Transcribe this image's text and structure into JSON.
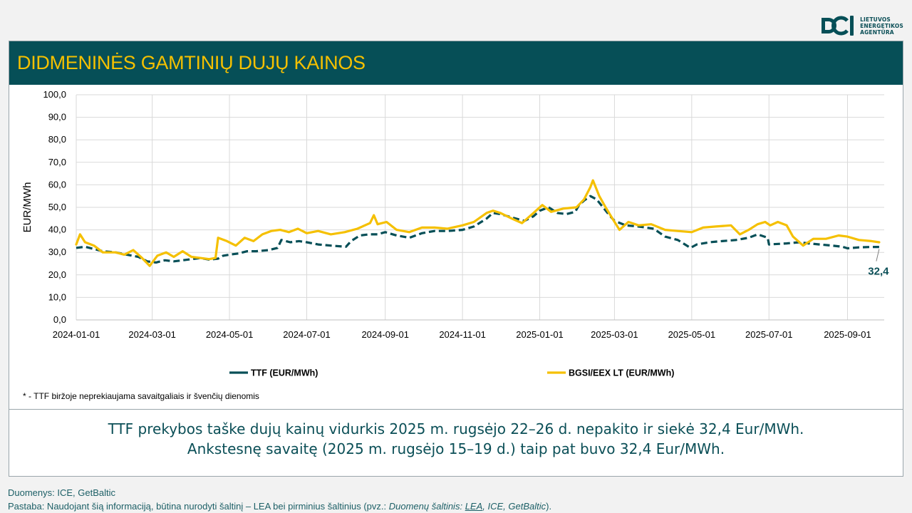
{
  "logo": {
    "name": "lea-logo-icon",
    "lines": [
      "LIETUVOS",
      "ENERGETIKOS",
      "AGENTŪRA"
    ]
  },
  "header": {
    "title": "DIDMENINĖS GAMTINIŲ DUJŲ KAINOS"
  },
  "chart_data": {
    "type": "line",
    "ylabel": "EUR/MWh",
    "ylim": [
      0,
      100
    ],
    "yticks": [
      "0,0",
      "10,0",
      "20,0",
      "30,0",
      "40,0",
      "50,0",
      "60,0",
      "70,0",
      "80,0",
      "90,0",
      "100,0"
    ],
    "xlim": [
      "2024-01-01",
      "2025-09-30"
    ],
    "xticks": [
      "2024-01-01",
      "2024-03-01",
      "2024-05-01",
      "2024-07-01",
      "2024-09-01",
      "2024-11-01",
      "2025-01-01",
      "2025-03-01",
      "2025-05-01",
      "2025-07-01",
      "2025-09-01"
    ],
    "grid": "vertical-and-horizontal",
    "legend_position": "bottom",
    "last_value_label": "32,4",
    "series": [
      {
        "name": "TTF (EUR/MWh)",
        "color": "#064f57",
        "style": "dashed",
        "points": [
          [
            "2024-01-01",
            32.0
          ],
          [
            "2024-01-08",
            32.5
          ],
          [
            "2024-01-15",
            31.5
          ],
          [
            "2024-01-22",
            30.5
          ],
          [
            "2024-02-01",
            30.0
          ],
          [
            "2024-02-10",
            29.0
          ],
          [
            "2024-02-19",
            28.0
          ],
          [
            "2024-02-26",
            26.0
          ],
          [
            "2024-03-04",
            25.5
          ],
          [
            "2024-03-11",
            26.5
          ],
          [
            "2024-03-18",
            26.0
          ],
          [
            "2024-03-25",
            26.5
          ],
          [
            "2024-04-01",
            27.0
          ],
          [
            "2024-04-08",
            27.5
          ],
          [
            "2024-04-15",
            26.8
          ],
          [
            "2024-04-22",
            27.2
          ],
          [
            "2024-04-26",
            28.5
          ],
          [
            "2024-05-01",
            29.0
          ],
          [
            "2024-05-08",
            29.5
          ],
          [
            "2024-05-15",
            30.5
          ],
          [
            "2024-05-22",
            30.5
          ],
          [
            "2024-06-01",
            31.0
          ],
          [
            "2024-06-08",
            32.0
          ],
          [
            "2024-06-11",
            35.5
          ],
          [
            "2024-06-18",
            34.5
          ],
          [
            "2024-06-25",
            35.0
          ],
          [
            "2024-07-01",
            34.5
          ],
          [
            "2024-07-10",
            33.5
          ],
          [
            "2024-07-20",
            33.0
          ],
          [
            "2024-08-01",
            32.5
          ],
          [
            "2024-08-05",
            35.0
          ],
          [
            "2024-08-12",
            37.5
          ],
          [
            "2024-08-19",
            38.0
          ],
          [
            "2024-08-26",
            38.0
          ],
          [
            "2024-09-01",
            39.0
          ],
          [
            "2024-09-10",
            37.5
          ],
          [
            "2024-09-20",
            36.5
          ],
          [
            "2024-09-30",
            38.5
          ],
          [
            "2024-10-10",
            39.5
          ],
          [
            "2024-10-20",
            39.5
          ],
          [
            "2024-11-01",
            40.0
          ],
          [
            "2024-11-10",
            41.5
          ],
          [
            "2024-11-20",
            45.0
          ],
          [
            "2024-11-25",
            47.5
          ],
          [
            "2024-12-01",
            47.0
          ],
          [
            "2024-12-10",
            45.5
          ],
          [
            "2024-12-20",
            44.0
          ],
          [
            "2024-12-27",
            46.0
          ],
          [
            "2025-01-01",
            48.5
          ],
          [
            "2025-01-08",
            50.0
          ],
          [
            "2025-01-15",
            47.5
          ],
          [
            "2025-01-22",
            47.0
          ],
          [
            "2025-01-29",
            48.0
          ],
          [
            "2025-02-01",
            51.0
          ],
          [
            "2025-02-05",
            53.0
          ],
          [
            "2025-02-10",
            55.0
          ],
          [
            "2025-02-15",
            53.5
          ],
          [
            "2025-02-20",
            50.0
          ],
          [
            "2025-02-25",
            46.5
          ],
          [
            "2025-03-01",
            44.0
          ],
          [
            "2025-03-10",
            42.0
          ],
          [
            "2025-03-20",
            41.5
          ],
          [
            "2025-04-01",
            40.5
          ],
          [
            "2025-04-10",
            37.0
          ],
          [
            "2025-04-20",
            35.5
          ],
          [
            "2025-04-30",
            32.0
          ],
          [
            "2025-05-05",
            33.5
          ],
          [
            "2025-05-15",
            34.5
          ],
          [
            "2025-05-25",
            35.0
          ],
          [
            "2025-06-05",
            35.5
          ],
          [
            "2025-06-15",
            36.5
          ],
          [
            "2025-06-22",
            38.0
          ],
          [
            "2025-06-30",
            36.5
          ],
          [
            "2025-07-01",
            33.5
          ],
          [
            "2025-07-15",
            34.0
          ],
          [
            "2025-07-25",
            34.5
          ],
          [
            "2025-08-01",
            34.0
          ],
          [
            "2025-08-10",
            33.5
          ],
          [
            "2025-08-20",
            33.0
          ],
          [
            "2025-08-28",
            32.5
          ],
          [
            "2025-09-01",
            31.8
          ],
          [
            "2025-09-10",
            32.2
          ],
          [
            "2025-09-20",
            32.4
          ],
          [
            "2025-09-26",
            32.4
          ]
        ]
      },
      {
        "name": "BGSI/EEX LT (EUR/MWh)",
        "color": "#f5c000",
        "style": "solid",
        "points": [
          [
            "2024-01-01",
            33.5
          ],
          [
            "2024-01-04",
            38.0
          ],
          [
            "2024-01-08",
            34.5
          ],
          [
            "2024-01-15",
            33.0
          ],
          [
            "2024-01-22",
            30.0
          ],
          [
            "2024-02-01",
            30.0
          ],
          [
            "2024-02-08",
            29.0
          ],
          [
            "2024-02-15",
            31.0
          ],
          [
            "2024-02-22",
            27.5
          ],
          [
            "2024-02-28",
            24.0
          ],
          [
            "2024-03-05",
            28.5
          ],
          [
            "2024-03-12",
            30.0
          ],
          [
            "2024-03-18",
            28.0
          ],
          [
            "2024-03-25",
            30.5
          ],
          [
            "2024-04-01",
            28.0
          ],
          [
            "2024-04-08",
            27.5
          ],
          [
            "2024-04-15",
            27.0
          ],
          [
            "2024-04-20",
            27.5
          ],
          [
            "2024-04-22",
            36.5
          ],
          [
            "2024-04-29",
            35.0
          ],
          [
            "2024-05-06",
            33.0
          ],
          [
            "2024-05-13",
            36.5
          ],
          [
            "2024-05-20",
            35.0
          ],
          [
            "2024-05-27",
            38.0
          ],
          [
            "2024-06-03",
            39.5
          ],
          [
            "2024-06-10",
            40.0
          ],
          [
            "2024-06-17",
            39.0
          ],
          [
            "2024-06-24",
            40.5
          ],
          [
            "2024-07-01",
            38.5
          ],
          [
            "2024-07-10",
            39.5
          ],
          [
            "2024-07-20",
            38.0
          ],
          [
            "2024-07-31",
            39.0
          ],
          [
            "2024-08-10",
            40.5
          ],
          [
            "2024-08-20",
            43.0
          ],
          [
            "2024-08-23",
            46.5
          ],
          [
            "2024-08-26",
            42.5
          ],
          [
            "2024-09-02",
            43.5
          ],
          [
            "2024-09-10",
            40.0
          ],
          [
            "2024-09-20",
            39.0
          ],
          [
            "2024-09-30",
            41.0
          ],
          [
            "2024-10-10",
            41.0
          ],
          [
            "2024-10-20",
            40.5
          ],
          [
            "2024-11-01",
            42.0
          ],
          [
            "2024-11-10",
            43.5
          ],
          [
            "2024-11-20",
            47.5
          ],
          [
            "2024-11-25",
            48.5
          ],
          [
            "2024-12-01",
            47.5
          ],
          [
            "2024-12-10",
            45.0
          ],
          [
            "2024-12-18",
            43.0
          ],
          [
            "2024-12-27",
            47.5
          ],
          [
            "2025-01-03",
            51.0
          ],
          [
            "2025-01-10",
            48.0
          ],
          [
            "2025-01-20",
            49.5
          ],
          [
            "2025-01-30",
            50.0
          ],
          [
            "2025-02-05",
            53.5
          ],
          [
            "2025-02-10",
            59.0
          ],
          [
            "2025-02-12",
            62.0
          ],
          [
            "2025-02-17",
            55.0
          ],
          [
            "2025-02-22",
            50.0
          ],
          [
            "2025-02-28",
            44.5
          ],
          [
            "2025-03-05",
            40.0
          ],
          [
            "2025-03-12",
            43.5
          ],
          [
            "2025-03-20",
            42.0
          ],
          [
            "2025-03-30",
            42.5
          ],
          [
            "2025-04-10",
            40.0
          ],
          [
            "2025-04-20",
            39.5
          ],
          [
            "2025-05-01",
            39.0
          ],
          [
            "2025-05-10",
            41.0
          ],
          [
            "2025-05-20",
            41.5
          ],
          [
            "2025-06-01",
            42.0
          ],
          [
            "2025-06-08",
            38.0
          ],
          [
            "2025-06-15",
            40.0
          ],
          [
            "2025-06-22",
            42.5
          ],
          [
            "2025-06-28",
            43.5
          ],
          [
            "2025-07-02",
            42.0
          ],
          [
            "2025-07-08",
            43.5
          ],
          [
            "2025-07-15",
            42.0
          ],
          [
            "2025-07-20",
            37.0
          ],
          [
            "2025-07-28",
            33.0
          ],
          [
            "2025-08-05",
            36.0
          ],
          [
            "2025-08-15",
            36.0
          ],
          [
            "2025-08-25",
            37.5
          ],
          [
            "2025-09-01",
            37.0
          ],
          [
            "2025-09-10",
            35.5
          ],
          [
            "2025-09-20",
            35.0
          ],
          [
            "2025-09-26",
            34.5
          ]
        ]
      }
    ]
  },
  "footnote": "* - TTF biržoje neprekiaujama savaitgaliais ir švenčių dienomis",
  "summary": {
    "line1": "TTF prekybos taške dujų kainų vidurkis 2025 m. rugsėjo 22–26 d. nepakito ir siekė 32,4 Eur/MWh.",
    "line2": "Ankstesnę savaitę (2025 m. rugsėjo 15–19 d.) taip pat buvo 32,4 Eur/MWh."
  },
  "source": {
    "line1": "Duomenys: ICE, GetBaltic",
    "note_prefix": "Pastaba: Naudojant šią informaciją, būtina nurodyti šaltinį – LEA bei pirminius šaltinius (pvz.: ",
    "note_italic": "Duomenų šaltinis: ",
    "note_link": "LEA",
    "note_italic2": ", ICE, GetBaltic",
    "note_suffix": ")."
  }
}
